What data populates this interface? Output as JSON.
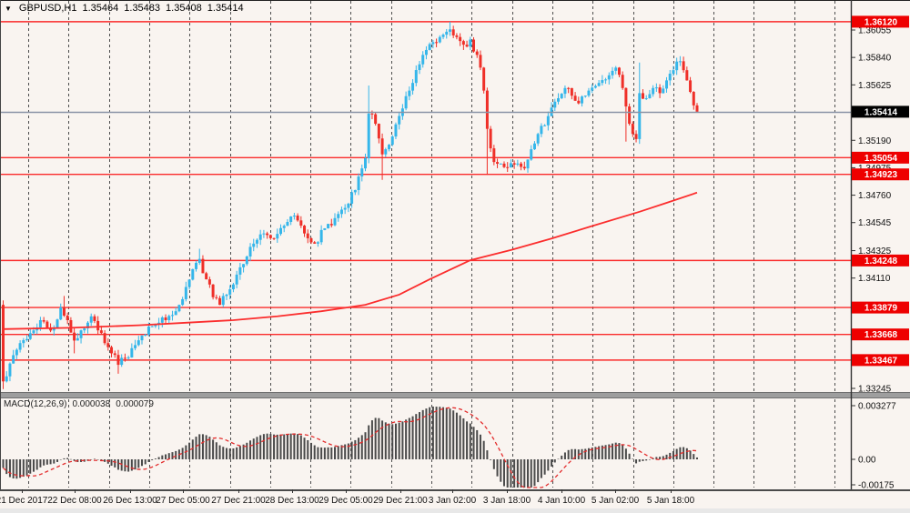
{
  "window": {
    "symbol": "GBPUSD,H1",
    "open": "1.35464",
    "high": "1.35483",
    "low": "1.35408",
    "close": "1.35414"
  },
  "macd_header": {
    "label": "MACD(12,26,9)",
    "value": "0.000038",
    "signal_value": "0.000079"
  },
  "chart_data": {
    "type": "candlestick",
    "symbol": "GBPUSD",
    "timeframe": "H1",
    "bars_total": 206,
    "ylim": [
      1.33224,
      1.3629
    ],
    "first_open": 1.339,
    "close_waypoints": [
      [
        0,
        1.333
      ],
      [
        2,
        1.3344
      ],
      [
        5,
        1.336
      ],
      [
        9,
        1.337
      ],
      [
        11,
        1.3378
      ],
      [
        13,
        1.3372
      ],
      [
        15,
        1.3372
      ],
      [
        17,
        1.3388
      ],
      [
        19,
        1.3378
      ],
      [
        21,
        1.3362
      ],
      [
        23,
        1.337
      ],
      [
        26,
        1.3381
      ],
      [
        28,
        1.337
      ],
      [
        30,
        1.336
      ],
      [
        32,
        1.3352
      ],
      [
        34,
        1.3343
      ],
      [
        36,
        1.3348
      ],
      [
        38,
        1.3356
      ],
      [
        41,
        1.3366
      ],
      [
        43,
        1.3373
      ],
      [
        46,
        1.3376
      ],
      [
        48,
        1.3378
      ],
      [
        50,
        1.3382
      ],
      [
        52,
        1.339
      ],
      [
        54,
        1.3404
      ],
      [
        56,
        1.3418
      ],
      [
        58,
        1.3426
      ],
      [
        60,
        1.341
      ],
      [
        62,
        1.3396
      ],
      [
        64,
        1.339
      ],
      [
        66,
        1.3398
      ],
      [
        68,
        1.3406
      ],
      [
        71,
        1.3422
      ],
      [
        74,
        1.3438
      ],
      [
        77,
        1.3446
      ],
      [
        80,
        1.3442
      ],
      [
        83,
        1.3452
      ],
      [
        86,
        1.346
      ],
      [
        89,
        1.3446
      ],
      [
        92,
        1.3438
      ],
      [
        95,
        1.345
      ],
      [
        98,
        1.3458
      ],
      [
        101,
        1.3466
      ],
      [
        104,
        1.348
      ],
      [
        106,
        1.3497
      ],
      [
        107,
        1.3505
      ],
      [
        108,
        1.354
      ],
      [
        110,
        1.3532
      ],
      [
        112,
        1.3508
      ],
      [
        115,
        1.3522
      ],
      [
        118,
        1.3544
      ],
      [
        121,
        1.3564
      ],
      [
        124,
        1.3586
      ],
      [
        127,
        1.3596
      ],
      [
        129,
        1.36
      ],
      [
        132,
        1.3606
      ],
      [
        134,
        1.36
      ],
      [
        136,
        1.3594
      ],
      [
        138,
        1.3598
      ],
      [
        140,
        1.3586
      ],
      [
        141,
        1.3576
      ],
      [
        142,
        1.3558
      ],
      [
        143,
        1.3528
      ],
      [
        145,
        1.3502
      ],
      [
        148,
        1.3498
      ],
      [
        151,
        1.35
      ],
      [
        154,
        1.3497
      ],
      [
        156,
        1.3512
      ],
      [
        158,
        1.3524
      ],
      [
        161,
        1.3538
      ],
      [
        164,
        1.3552
      ],
      [
        166,
        1.356
      ],
      [
        168,
        1.3554
      ],
      [
        170,
        1.3548
      ],
      [
        173,
        1.3558
      ],
      [
        176,
        1.3564
      ],
      [
        179,
        1.357
      ],
      [
        181,
        1.3576
      ],
      [
        183,
        1.356
      ],
      [
        185,
        1.3532
      ],
      [
        186,
        1.3524
      ],
      [
        187,
        1.352
      ],
      [
        188,
        1.3556
      ],
      [
        190,
        1.3552
      ],
      [
        192,
        1.356
      ],
      [
        194,
        1.3556
      ],
      [
        196,
        1.3566
      ],
      [
        198,
        1.3574
      ],
      [
        200,
        1.3581
      ],
      [
        201,
        1.3574
      ],
      [
        202,
        1.3566
      ],
      [
        203,
        1.3557
      ],
      [
        204,
        1.35464
      ],
      [
        205,
        1.35414
      ]
    ],
    "wick_events": [
      {
        "bar": 0,
        "low": 1.3324
      },
      {
        "bar": 18,
        "high": 1.3397
      },
      {
        "bar": 21,
        "low": 1.3352
      },
      {
        "bar": 34,
        "low": 1.3336
      },
      {
        "bar": 58,
        "high": 1.3434
      },
      {
        "bar": 108,
        "high": 1.3562
      },
      {
        "bar": 112,
        "low": 1.3488
      },
      {
        "bar": 132,
        "high": 1.3612
      },
      {
        "bar": 143,
        "low": 1.3492
      },
      {
        "bar": 184,
        "low": 1.3518
      },
      {
        "bar": 188,
        "high": 1.358
      },
      {
        "bar": 200,
        "high": 1.3585
      },
      {
        "bar": 205,
        "high": 1.35483,
        "low": 1.35408
      }
    ],
    "ma_line": {
      "name": "moving-average",
      "points": [
        [
          0,
          1.3371
        ],
        [
          20,
          1.3372
        ],
        [
          40,
          1.3374
        ],
        [
          54,
          1.3376
        ],
        [
          68,
          1.3378
        ],
        [
          81,
          1.3381
        ],
        [
          94,
          1.3385
        ],
        [
          107,
          1.339
        ],
        [
          117,
          1.3398
        ],
        [
          126,
          1.341
        ],
        [
          138,
          1.3425
        ],
        [
          150,
          1.3433
        ],
        [
          162,
          1.3442
        ],
        [
          173,
          1.3451
        ],
        [
          188,
          1.3463
        ],
        [
          196,
          1.347
        ],
        [
          205,
          1.3478
        ]
      ]
    },
    "levels": [
      {
        "price": 1.3612,
        "label": "1.36120"
      },
      {
        "price": 1.35054,
        "label": "1.35054"
      },
      {
        "price": 1.34923,
        "label": "1.34923"
      },
      {
        "price": 1.34248,
        "label": "1.34248"
      },
      {
        "price": 1.33879,
        "label": "1.33879"
      },
      {
        "price": 1.33668,
        "label": "1.33668"
      },
      {
        "price": 1.33467,
        "label": "1.33467"
      }
    ],
    "current_price": {
      "price": 1.35414,
      "label": "1.35414"
    },
    "y_axis_ticks": [
      {
        "price": 1.36055,
        "label": "1.36055"
      },
      {
        "price": 1.3584,
        "label": "1.35840"
      },
      {
        "price": 1.35625,
        "label": "1.35625"
      },
      {
        "price": 1.3519,
        "label": "1.35190"
      },
      {
        "price": 1.34975,
        "label": "1.34975"
      },
      {
        "price": 1.3476,
        "label": "1.34760"
      },
      {
        "price": 1.34545,
        "label": "1.34545"
      },
      {
        "price": 1.34325,
        "label": "1.34325"
      },
      {
        "price": 1.3411,
        "label": "1.34110"
      },
      {
        "price": 1.33245,
        "label": "1.33245"
      }
    ],
    "x_axis_labels": [
      {
        "text": "21 Dec 2017",
        "x": 24
      },
      {
        "text": "22 Dec 08:00",
        "x": 82
      },
      {
        "text": "26 Dec 13:00",
        "x": 143
      },
      {
        "text": "27 Dec 05:00",
        "x": 201
      },
      {
        "text": "27 Dec 21:00",
        "x": 262
      },
      {
        "text": "28 Dec 13:00",
        "x": 321
      },
      {
        "text": "29 Dec 05:00",
        "x": 380
      },
      {
        "text": "29 Dec 21:00",
        "x": 440
      },
      {
        "text": "3 Jan 02:00",
        "x": 497
      },
      {
        "text": "3 Jan 18:00",
        "x": 557
      },
      {
        "text": "4 Jan 10:00",
        "x": 617
      },
      {
        "text": "5 Jan 02:00",
        "x": 676
      },
      {
        "text": "5 Jan 18:00",
        "x": 737
      }
    ],
    "macd": {
      "fast": 12,
      "slow": 26,
      "signal": 9,
      "axis_labels": [
        {
          "label": "0.003277",
          "y": 446
        },
        {
          "label": "0.00",
          "y": 505
        },
        {
          "label": "-0.00175",
          "y": 533
        }
      ]
    }
  },
  "colors": {
    "background": "#f9f4f0",
    "bull": "#35b6ea",
    "bear": "#ef2f28",
    "level_line": "#fa2b2b",
    "level_badge": "#ee0000",
    "current_badge": "#000000",
    "current_line": "#8a93a6",
    "ma_line": "#fb2d2d",
    "grid": "#4d4d4d",
    "hist": "#4a4a4a",
    "signal_line": "#e32d2d",
    "axis_text": "#111111",
    "separator": "#9e9e9e"
  }
}
